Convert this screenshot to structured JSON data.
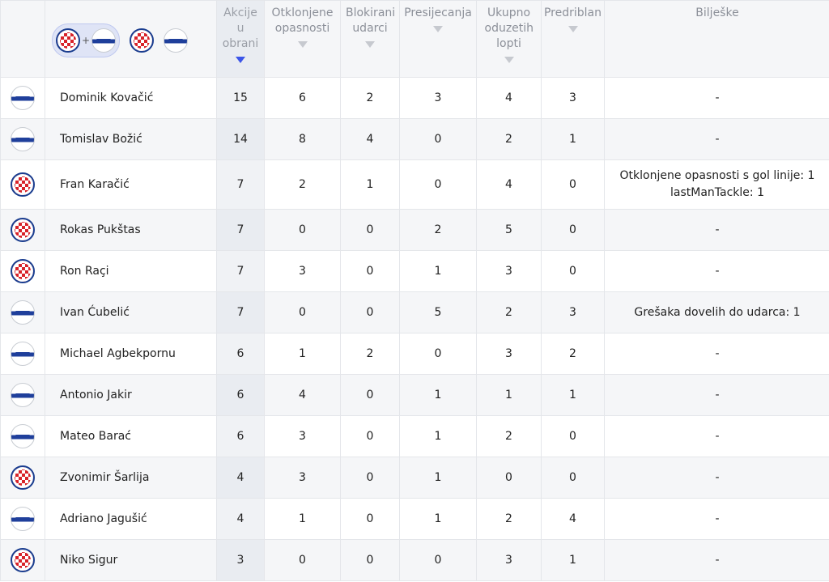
{
  "filter": {
    "plus": "+",
    "combo_teams": [
      "hajduk",
      "slaven"
    ],
    "teams": [
      "hajduk",
      "slaven"
    ]
  },
  "columns": [
    {
      "key": "akcije",
      "label": "Akcije u obrani",
      "sorted": true
    },
    {
      "key": "otklonjene",
      "label": "Otklonjene opasnosti",
      "sorted": false
    },
    {
      "key": "blokirani",
      "label": "Blokirani udarci",
      "sorted": false
    },
    {
      "key": "presijecanja",
      "label": "Presijecanja",
      "sorted": false
    },
    {
      "key": "oduzete",
      "label": "Ukupno oduzetih lopti",
      "sorted": false
    },
    {
      "key": "predriblan",
      "label": "Predriblan",
      "sorted": false
    },
    {
      "key": "biljeske",
      "label": "Bilješke",
      "sorted": false
    }
  ],
  "players": [
    {
      "team": "slaven",
      "name": "Dominik Kovačić",
      "stats": [
        "15",
        "6",
        "2",
        "3",
        "4",
        "3"
      ],
      "notes": [
        "-"
      ]
    },
    {
      "team": "slaven",
      "name": "Tomislav Božić",
      "stats": [
        "14",
        "8",
        "4",
        "0",
        "2",
        "1"
      ],
      "notes": [
        "-"
      ]
    },
    {
      "team": "hajduk",
      "name": "Fran Karačić",
      "stats": [
        "7",
        "2",
        "1",
        "0",
        "4",
        "0"
      ],
      "notes": [
        "Otklonjene opasnosti s gol linije: 1",
        "lastManTackle: 1"
      ]
    },
    {
      "team": "hajduk",
      "name": "Rokas Pukštas",
      "stats": [
        "7",
        "0",
        "0",
        "2",
        "5",
        "0"
      ],
      "notes": [
        "-"
      ]
    },
    {
      "team": "hajduk",
      "name": "Ron Raçi",
      "stats": [
        "7",
        "3",
        "0",
        "1",
        "3",
        "0"
      ],
      "notes": [
        "-"
      ]
    },
    {
      "team": "slaven",
      "name": "Ivan Ćubelić",
      "stats": [
        "7",
        "0",
        "0",
        "5",
        "2",
        "3"
      ],
      "notes": [
        "Grešaka dovelih do udarca: 1"
      ]
    },
    {
      "team": "slaven",
      "name": "Michael Agbekpornu",
      "stats": [
        "6",
        "1",
        "2",
        "0",
        "3",
        "2"
      ],
      "notes": [
        "-"
      ]
    },
    {
      "team": "slaven",
      "name": "Antonio Jakir",
      "stats": [
        "6",
        "4",
        "0",
        "1",
        "1",
        "1"
      ],
      "notes": [
        "-"
      ]
    },
    {
      "team": "slaven",
      "name": "Mateo Barać",
      "stats": [
        "6",
        "3",
        "0",
        "1",
        "2",
        "0"
      ],
      "notes": [
        "-"
      ]
    },
    {
      "team": "hajduk",
      "name": "Zvonimir Šarlija",
      "stats": [
        "4",
        "3",
        "0",
        "1",
        "0",
        "0"
      ],
      "notes": [
        "-"
      ]
    },
    {
      "team": "slaven",
      "name": "Adriano Jagušić",
      "stats": [
        "4",
        "1",
        "0",
        "1",
        "2",
        "4"
      ],
      "notes": [
        "-"
      ]
    },
    {
      "team": "hajduk",
      "name": "Niko Sigur",
      "stats": [
        "3",
        "0",
        "0",
        "0",
        "3",
        "1"
      ],
      "notes": [
        "-"
      ]
    }
  ],
  "row_heights": "layout-only"
}
